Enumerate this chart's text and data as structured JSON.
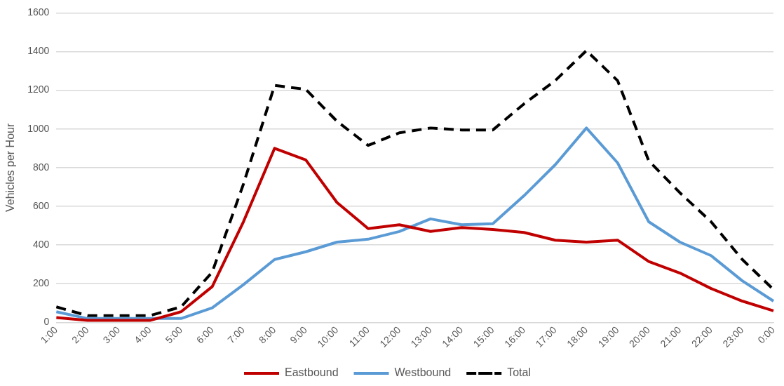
{
  "chart_data": {
    "type": "line",
    "ylabel": "Vehicles per Hour",
    "categories": [
      "1:00",
      "2:00",
      "3:00",
      "4:00",
      "5:00",
      "6:00",
      "7:00",
      "8:00",
      "9:00",
      "10:00",
      "11:00",
      "12:00",
      "13:00",
      "14:00",
      "15:00",
      "16:00",
      "17:00",
      "18:00",
      "19:00",
      "20:00",
      "21:00",
      "22:00",
      "23:00",
      "0:00"
    ],
    "series": [
      {
        "name": "Eastbound",
        "color": "#c00000",
        "line_style": "solid",
        "values": [
          25,
          10,
          10,
          10,
          55,
          185,
          520,
          900,
          840,
          620,
          485,
          505,
          470,
          490,
          480,
          465,
          425,
          415,
          425,
          315,
          255,
          175,
          110,
          60
        ]
      },
      {
        "name": "Westbound",
        "color": "#5b9bd5",
        "line_style": "solid",
        "values": [
          55,
          20,
          20,
          20,
          20,
          75,
          195,
          325,
          365,
          415,
          430,
          470,
          535,
          505,
          510,
          655,
          815,
          1005,
          825,
          520,
          415,
          345,
          215,
          110
        ]
      },
      {
        "name": "Total",
        "color": "#000000",
        "line_style": "dashed",
        "values": [
          80,
          35,
          35,
          35,
          80,
          260,
          715,
          1225,
          1205,
          1040,
          915,
          980,
          1005,
          995,
          995,
          1130,
          1250,
          1405,
          1250,
          835,
          670,
          520,
          325,
          170
        ]
      }
    ],
    "ylim": [
      0,
      1600
    ],
    "yticks": [
      0,
      200,
      400,
      600,
      800,
      1000,
      1200,
      1400,
      1600
    ],
    "grid": "y",
    "legend": "bottom",
    "marker": "none"
  }
}
